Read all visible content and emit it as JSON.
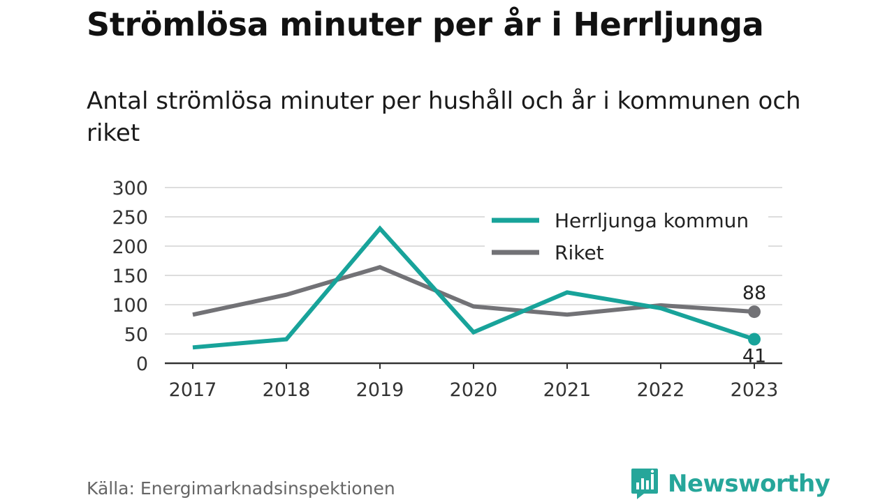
{
  "title": "Strömlösa minuter per år i Herrljunga",
  "subtitle": "Antal strömlösa minuter per hushåll och år i kommunen och riket",
  "source": "Källa: Energimarknadsinspektionen",
  "brand": "Newsworthy",
  "colors": {
    "herrljunga": "#18a39a",
    "riket": "#727276",
    "grid": "#dddddd",
    "axis": "#333333",
    "brand": "#26a69a"
  },
  "chart_data": {
    "type": "line",
    "x": [
      "2017",
      "2018",
      "2019",
      "2020",
      "2021",
      "2022",
      "2023"
    ],
    "series": [
      {
        "name": "Herrljunga kommun",
        "values": [
          27,
          41,
          230,
          53,
          121,
          94,
          41
        ],
        "end_label": "41"
      },
      {
        "name": "Riket",
        "values": [
          83,
          117,
          164,
          97,
          83,
          99,
          88
        ],
        "end_label": "88"
      }
    ],
    "ylim": [
      0,
      300
    ],
    "yticks": [
      "0",
      "50",
      "100",
      "150",
      "200",
      "250",
      "300"
    ],
    "grid": true,
    "legend": "top-right"
  }
}
